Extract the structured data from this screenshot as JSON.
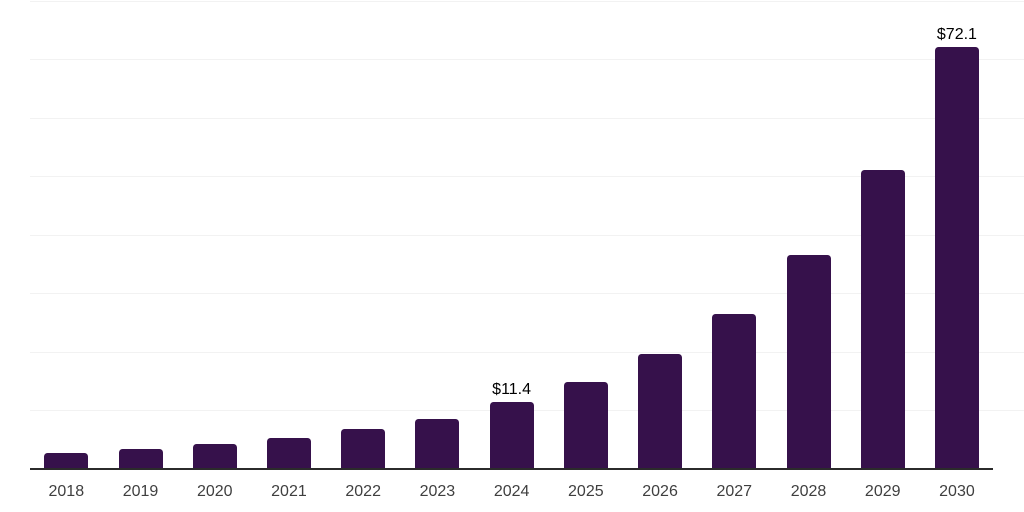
{
  "chart_data": {
    "type": "bar",
    "title": "",
    "xlabel": "",
    "ylabel": "",
    "categories": [
      "2018",
      "2019",
      "2020",
      "2021",
      "2022",
      "2023",
      "2024",
      "2025",
      "2026",
      "2027",
      "2028",
      "2029",
      "2030"
    ],
    "values": [
      2.7,
      3.5,
      4.2,
      5.3,
      6.8,
      8.5,
      11.4,
      14.9,
      19.6,
      26.5,
      36.6,
      51.1,
      72.1
    ],
    "data_labels": [
      {
        "category": "2024",
        "text": "$11.4"
      },
      {
        "category": "2030",
        "text": "$72.1"
      }
    ],
    "ylim": [
      0,
      80
    ],
    "grid_step": 10,
    "grid": "horizontal-only",
    "y_axis_labels": "none",
    "legend": "none",
    "colors": {
      "bar": "#36114B",
      "background": "#ffffff",
      "gridline": "#f2f2f2",
      "axis_line": "#2b2b2b",
      "tick_label": "#3f3f3f",
      "data_label": "#000000"
    }
  }
}
